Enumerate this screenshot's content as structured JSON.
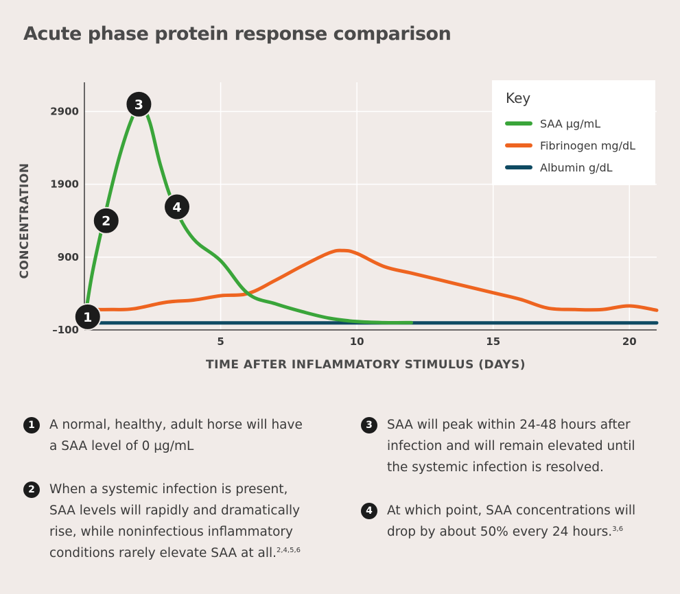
{
  "title": "Acute phase protein response comparison",
  "chart_data": {
    "type": "line",
    "xlabel": "TIME AFTER INFLAMMATORY STIMULUS (DAYS)",
    "ylabel": "CONCENTRATION",
    "xlim": [
      0,
      21
    ],
    "ylim": [
      -100,
      3300
    ],
    "x_ticks": [
      5,
      10,
      15,
      20
    ],
    "y_ticks": [
      -100,
      900,
      1900,
      2900
    ],
    "y_tick_labels": [
      "–100",
      "900",
      "1900",
      "2900"
    ],
    "grid": true,
    "legend_placement": "top-right",
    "legend_title": "Key",
    "series": [
      {
        "name": "SAA µg/mL",
        "color": "#3aa53a",
        "x": [
          0,
          0.3,
          0.8,
          1.3,
          1.8,
          2.1,
          2.4,
          2.8,
          3.3,
          4,
          5,
          6,
          7,
          8,
          9,
          10,
          11,
          12
        ],
        "y": [
          0,
          700,
          1550,
          2300,
          2850,
          2960,
          2750,
          2150,
          1600,
          1150,
          850,
          400,
          260,
          150,
          60,
          15,
          0,
          0
        ]
      },
      {
        "name": "Fibrinogen mg/dL",
        "color": "#ee6420",
        "x": [
          0,
          1,
          1.8,
          3,
          4,
          5,
          6,
          7,
          8,
          9,
          9.5,
          10,
          11,
          12,
          13,
          14,
          15,
          16,
          17,
          18,
          19,
          20,
          21
        ],
        "y": [
          180,
          180,
          190,
          280,
          310,
          370,
          400,
          580,
          780,
          960,
          990,
          950,
          770,
          680,
          590,
          500,
          410,
          320,
          200,
          180,
          180,
          230,
          170
        ]
      },
      {
        "name": "Albumin g/dL",
        "color": "#0f4a62",
        "x": [
          0,
          21
        ],
        "y": [
          -3,
          -3
        ]
      }
    ],
    "markers": [
      {
        "label": "1",
        "x": 0.12,
        "y": 80
      },
      {
        "label": "2",
        "x": 0.8,
        "y": 1400
      },
      {
        "label": "3",
        "x": 2.0,
        "y": 3000
      },
      {
        "label": "4",
        "x": 3.4,
        "y": 1590
      }
    ]
  },
  "notes": [
    {
      "num": "1",
      "text": "A normal, healthy, adult horse will have\na SAA level of 0 µg/mL",
      "refs": ""
    },
    {
      "num": "2",
      "text": "When a systemic infection is present,\nSAA levels will rapidly and dramatically\nrise, while noninfectious inflammatory\nconditions rarely elevate SAA at all.",
      "refs": "2,4,5,6"
    },
    {
      "num": "3",
      "text": "SAA will peak within 24-48 hours after\ninfection and will remain elevated until\nthe systemic infection is resolved.",
      "refs": ""
    },
    {
      "num": "4",
      "text": "At which point, SAA concentrations will\ndrop by about 50% every 24 hours.",
      "refs": "3,6"
    }
  ]
}
